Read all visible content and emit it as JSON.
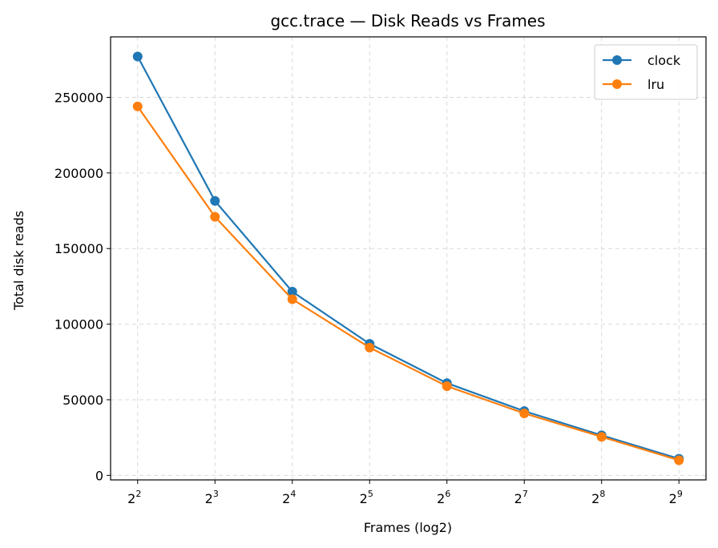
{
  "chart_data": {
    "type": "line",
    "title": "gcc.trace — Disk Reads vs Frames",
    "xlabel": "Frames (log2)",
    "ylabel": "Total disk reads",
    "x_scale": "log2",
    "x": [
      4,
      8,
      16,
      32,
      64,
      128,
      256,
      512
    ],
    "x_exponents": [
      "2",
      "3",
      "4",
      "5",
      "6",
      "7",
      "8",
      "9"
    ],
    "y_ticks": [
      "0",
      "50000",
      "100000",
      "150000",
      "200000",
      "250000"
    ],
    "ylim": [
      -3000,
      290000
    ],
    "grid": true,
    "legend_position": "top-right",
    "series": [
      {
        "name": "clock",
        "color": "#1f77b4",
        "values": [
          277000,
          181500,
          121500,
          87000,
          61000,
          42500,
          26500,
          11000
        ]
      },
      {
        "name": "lru",
        "color": "#ff7f0e",
        "values": [
          244000,
          171000,
          116500,
          84500,
          59000,
          41000,
          25500,
          10000
        ]
      }
    ]
  }
}
